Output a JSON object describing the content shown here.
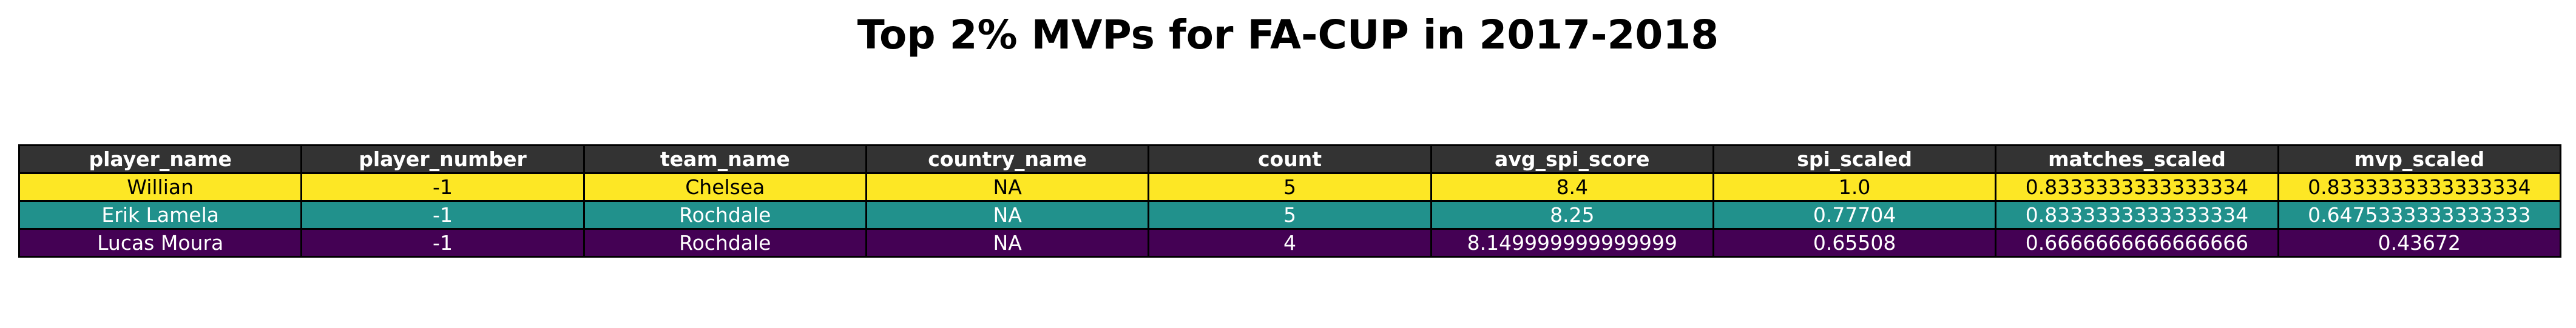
{
  "chart_data": {
    "type": "table",
    "title": "Top 2% MVPs for FA-CUP in 2017-2018",
    "columns": [
      "player_name",
      "player_number",
      "team_name",
      "country_name",
      "count",
      "avg_spi_score",
      "spi_scaled",
      "matches_scaled",
      "mvp_scaled"
    ],
    "rows": [
      [
        "Willian",
        "-1",
        "Chelsea",
        "NA",
        "5",
        "8.4",
        "1.0",
        "0.8333333333333334",
        "0.8333333333333334"
      ],
      [
        "Erik Lamela",
        "-1",
        "Rochdale",
        "NA",
        "5",
        "8.25",
        "0.77704",
        "0.8333333333333334",
        "0.6475333333333333"
      ],
      [
        "Lucas Moura",
        "-1",
        "Rochdale",
        "NA",
        "4",
        "8.149999999999999",
        "0.65508",
        "0.6666666666666666",
        "0.43672"
      ]
    ],
    "row_colors": [
      "#fde725",
      "#21918c",
      "#440154"
    ],
    "row_text_colors": [
      "#000000",
      "#ffffff",
      "#ffffff"
    ],
    "header_color": "#333333",
    "header_text_color": "#ffffff"
  }
}
